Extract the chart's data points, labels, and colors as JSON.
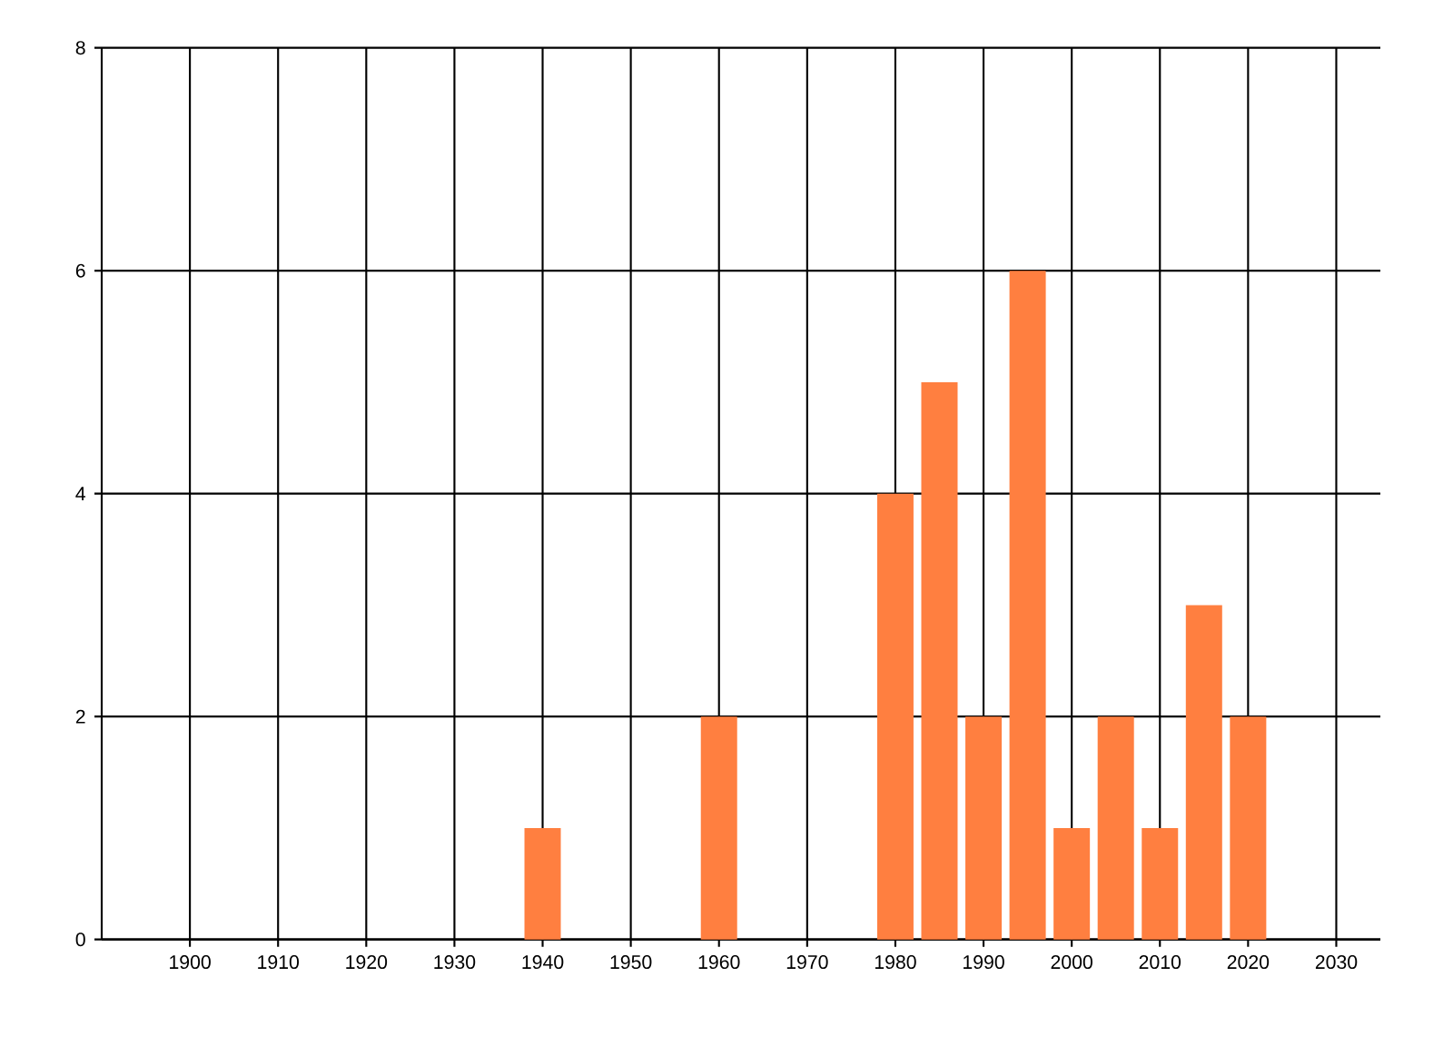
{
  "chart_data": {
    "type": "bar",
    "x": [
      1940,
      1960,
      1980,
      1985,
      1990,
      1995,
      2000,
      2005,
      2010,
      2015,
      2020
    ],
    "values": [
      1,
      2,
      4,
      5,
      2,
      6,
      1,
      2,
      1,
      3,
      2
    ],
    "color": "#ff7f40",
    "xlim": [
      1890,
      2035
    ],
    "xticks": [
      1900,
      1910,
      1920,
      1930,
      1940,
      1950,
      1960,
      1970,
      1980,
      1990,
      2000,
      2010,
      2020,
      2030
    ],
    "ylim": [
      0,
      8
    ],
    "yticks": [
      0,
      2,
      4,
      6,
      8
    ],
    "grid": true
  }
}
